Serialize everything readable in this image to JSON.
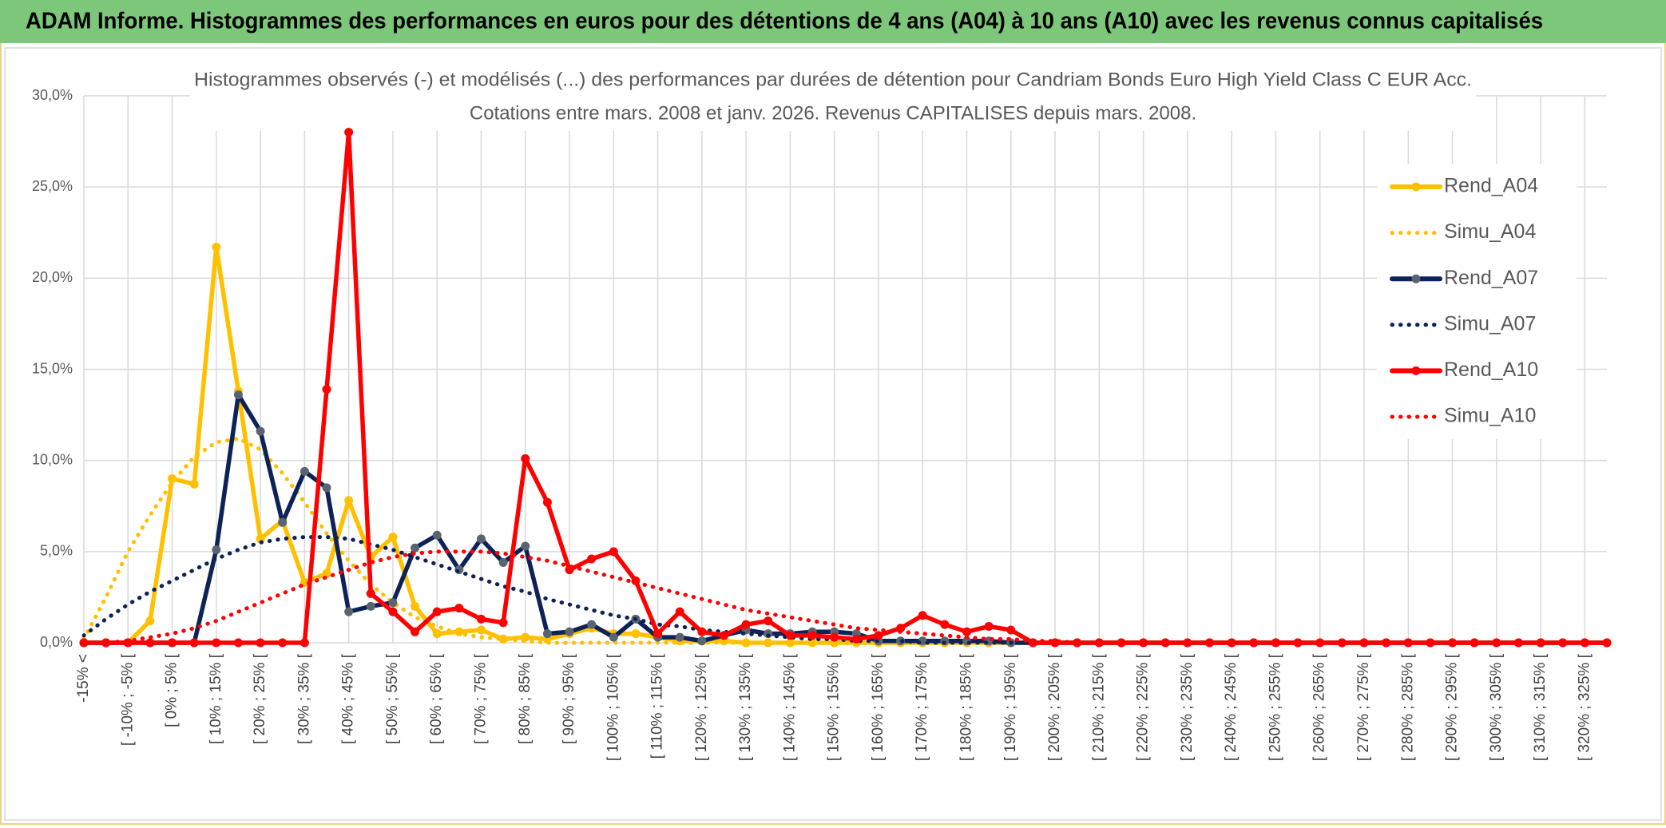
{
  "chart_data": {
    "type": "line",
    "header": "ADAM Informe. Histogrammes des performances en euros pour des détentions de 4 ans (A04) à 10 ans (A10) avec les revenus connus capitalisés",
    "title": "Histogrammes observés (-) et modélisés (...) des performances par durées de détention pour Candriam Bonds Euro High Yield Class C EUR Acc.",
    "subtitle": "Cotations entre mars. 2008 et janv. 2026. Revenus CAPITALISES depuis mars. 2008.",
    "categories": [
      "-15% <",
      null,
      "[ -10% ; -5% [",
      null,
      "[ 0% ; 5% [",
      null,
      "[ 10% ; 15% [",
      null,
      "[ 20% ; 25% [",
      null,
      "[ 30% ; 35% [",
      null,
      "[ 40% ; 45% [",
      null,
      "[ 50% ; 55% [",
      null,
      "[ 60% ; 65% [",
      null,
      "[ 70% ; 75% [",
      null,
      "[ 80% ; 85% [",
      null,
      "[ 90% ; 95% [",
      null,
      "[ 100% ; 105% [",
      null,
      "[ 110% ; 115% [",
      null,
      "[ 120% ; 125% [",
      null,
      "[ 130% ; 135% [",
      null,
      "[ 140% ; 145% [",
      null,
      "[ 150% ; 155% [",
      null,
      "[ 160% ; 165% [",
      null,
      "[ 170% ; 175% [",
      null,
      "[ 180% ; 185% [",
      null,
      "[ 190% ; 195% [",
      null,
      "[ 200% ; 205% [",
      null,
      "[ 210% ; 215% [",
      null,
      "[ 220% ; 225% [",
      null,
      "[ 230% ; 235% [",
      null,
      "[ 240% ; 245% [",
      null,
      "[ 250% ; 255% [",
      null,
      "[ 260% ; 265% [",
      null,
      "[ 270% ; 275% [",
      null,
      "[ 280% ; 285% [",
      null,
      "[ 290% ; 295% [",
      null,
      "[ 300% ; 305% [",
      null,
      "[ 310% ; 315% [",
      null,
      "[ 320% ; 325% [",
      null
    ],
    "ylim": [
      0,
      30
    ],
    "yticks": [
      {
        "value": 0,
        "label": "0,0%"
      },
      {
        "value": 5,
        "label": "5,0%"
      },
      {
        "value": 10,
        "label": "10,0%"
      },
      {
        "value": 15,
        "label": "15,0%"
      },
      {
        "value": 20,
        "label": "20,0%"
      },
      {
        "value": 25,
        "label": "25,0%"
      },
      {
        "value": 30,
        "label": "30,0%"
      }
    ],
    "grid": true,
    "legend": "right",
    "series": [
      {
        "name": "Rend_A04",
        "color": "#ffc000",
        "marker_color": "#ffc000",
        "style": "solid",
        "values": [
          0,
          0,
          0,
          1.2,
          9.0,
          8.7,
          21.7,
          13.8,
          5.7,
          6.7,
          3.3,
          3.8,
          7.8,
          4.7,
          5.8,
          2.0,
          0.5,
          0.6,
          0.7,
          0.2,
          0.3,
          0.2,
          0.5,
          0.8,
          0.5,
          0.5,
          0.3,
          0.1,
          0.1,
          0.1,
          0,
          0,
          0,
          0,
          0,
          0,
          0,
          0,
          0,
          0,
          0,
          0,
          0,
          0,
          0,
          0,
          0,
          0,
          0,
          0,
          0,
          0,
          0,
          0,
          0,
          0,
          0,
          0,
          0,
          0,
          0,
          0,
          0,
          0,
          0,
          0,
          0,
          0,
          0,
          0
        ]
      },
      {
        "name": "Simu_A04",
        "color": "#ffc000",
        "style": "dotted",
        "values": [
          0.2,
          2.5,
          5.0,
          7.0,
          8.8,
          10.2,
          11.0,
          11.2,
          10.6,
          9.3,
          7.7,
          6.0,
          4.5,
          3.2,
          2.2,
          1.4,
          0.9,
          0.5,
          0.3,
          0.2,
          0.1,
          0,
          0,
          0,
          0,
          0,
          0,
          0,
          0,
          0,
          0,
          0,
          0,
          0,
          0,
          0,
          0,
          0,
          0,
          0,
          0,
          0,
          0,
          0,
          0,
          0,
          0,
          0,
          0,
          0,
          0,
          0,
          0,
          0,
          0,
          0,
          0,
          0,
          0,
          0,
          0,
          0,
          0,
          0,
          0,
          0,
          0,
          0,
          0,
          0
        ]
      },
      {
        "name": "Rend_A07",
        "color": "#0d2257",
        "marker_color": "#5a6470",
        "style": "solid",
        "values": [
          0,
          0,
          0,
          0,
          0,
          0,
          5.1,
          13.6,
          11.6,
          6.6,
          9.4,
          8.5,
          1.7,
          2.0,
          2.2,
          5.2,
          5.9,
          4.0,
          5.7,
          4.4,
          5.3,
          0.5,
          0.6,
          1.0,
          0.3,
          1.3,
          0.3,
          0.3,
          0.1,
          0.4,
          0.7,
          0.5,
          0.5,
          0.6,
          0.6,
          0.5,
          0.1,
          0.1,
          0.1,
          0.1,
          0.1,
          0.1,
          0,
          0,
          0,
          0,
          0,
          0,
          0,
          0,
          0,
          0,
          0,
          0,
          0,
          0,
          0,
          0,
          0,
          0,
          0,
          0,
          0,
          0,
          0,
          0,
          0,
          0,
          0,
          0
        ]
      },
      {
        "name": "Simu_A07",
        "color": "#0d2257",
        "style": "dotted",
        "values": [
          0.4,
          1.3,
          2.1,
          2.8,
          3.4,
          4.0,
          4.6,
          5.1,
          5.5,
          5.7,
          5.8,
          5.8,
          5.7,
          5.4,
          5.1,
          4.7,
          4.3,
          3.9,
          3.5,
          3.1,
          2.8,
          2.4,
          2.1,
          1.8,
          1.5,
          1.3,
          1.0,
          0.9,
          0.7,
          0.6,
          0.5,
          0.4,
          0.3,
          0.2,
          0.2,
          0.1,
          0.1,
          0.1,
          0,
          0,
          0,
          0,
          0,
          0,
          0,
          0,
          0,
          0,
          0,
          0,
          0,
          0,
          0,
          0,
          0,
          0,
          0,
          0,
          0,
          0,
          0,
          0,
          0,
          0,
          0,
          0,
          0,
          0,
          0,
          0
        ]
      },
      {
        "name": "Rend_A10",
        "color": "#ff0000",
        "marker_color": "#ff0000",
        "style": "solid",
        "values": [
          0,
          0,
          0,
          0,
          0,
          0,
          0,
          0,
          0,
          0,
          0,
          13.9,
          28.0,
          2.7,
          1.7,
          0.6,
          1.7,
          1.9,
          1.3,
          1.1,
          10.1,
          7.7,
          4.0,
          4.6,
          5.0,
          3.4,
          0.5,
          1.7,
          0.6,
          0.4,
          1.0,
          1.2,
          0.4,
          0.4,
          0.3,
          0.2,
          0.4,
          0.8,
          1.5,
          1.0,
          0.6,
          0.9,
          0.7,
          0,
          0,
          0,
          0,
          0,
          0,
          0,
          0,
          0,
          0,
          0,
          0,
          0,
          0,
          0,
          0,
          0,
          0,
          0,
          0,
          0,
          0,
          0,
          0,
          0,
          0,
          0
        ]
      },
      {
        "name": "Simu_A10",
        "color": "#ff0000",
        "style": "dotted",
        "values": [
          0,
          0,
          0.1,
          0.3,
          0.5,
          0.8,
          1.2,
          1.7,
          2.2,
          2.7,
          3.2,
          3.6,
          4.0,
          4.4,
          4.7,
          4.9,
          5.0,
          5.0,
          5.0,
          4.9,
          4.7,
          4.5,
          4.2,
          3.9,
          3.6,
          3.3,
          3.0,
          2.7,
          2.4,
          2.1,
          1.8,
          1.6,
          1.4,
          1.2,
          1.0,
          0.8,
          0.7,
          0.6,
          0.5,
          0.4,
          0.3,
          0.2,
          0.2,
          0.1,
          0.1,
          0,
          0,
          0,
          0,
          0,
          0,
          0,
          0,
          0,
          0,
          0,
          0,
          0,
          0,
          0,
          0,
          0,
          0,
          0,
          0,
          0,
          0,
          0,
          0,
          0
        ]
      }
    ]
  }
}
